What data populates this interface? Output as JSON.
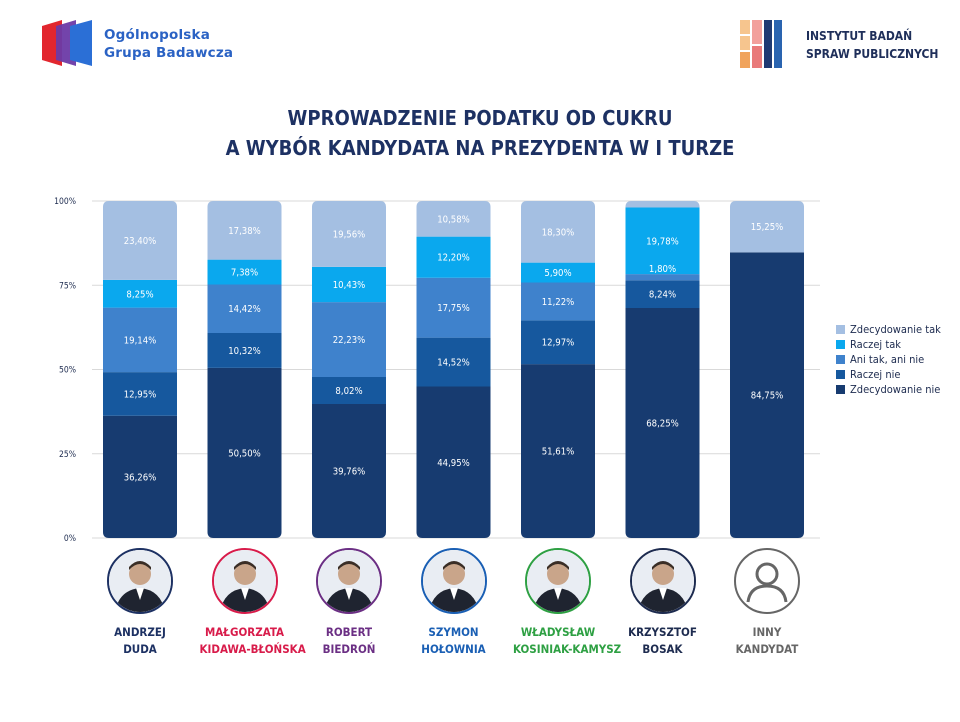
{
  "logos": {
    "left": {
      "line1": "Ogólnopolska",
      "line2": "Grupa Badawcza"
    },
    "right": {
      "line1": "INSTYTUT BADAŃ",
      "line2": "SPRAW PUBLICZNYCH"
    }
  },
  "title": {
    "line1": "WPROWADZENIE PODATKU OD CUKRU",
    "line2": "A WYBÓR KANDYDATA NA PREZYDENTA W I TURZE"
  },
  "colors": {
    "zdecydowanie_tak": "#a4bfe2",
    "raczej_tak": "#0aa8ee",
    "ani_tak_ani_nie": "#3f82cc",
    "raczej_nie": "#16589e",
    "zdecydowanie_nie": "#173b70",
    "title": "#1d3163"
  },
  "chart_data": {
    "type": "bar",
    "stacked": true,
    "orientation": "vertical",
    "categories": [
      "ANDRZEJ DUDA",
      "MAŁGORZATA KIDAWA-BŁOŃSKA",
      "ROBERT BIEDROŃ",
      "SZYMON HOŁOWNIA",
      "WŁADYSŁAW KOSINIAK-KAMYSZ",
      "KRZYSZTOF BOSAK",
      "INNY KANDYDAT"
    ],
    "y_ticks": [
      "0%",
      "25%",
      "50%",
      "75%",
      "100%"
    ],
    "ylim": [
      0,
      100
    ],
    "grid": true,
    "legend_position": "right",
    "series": [
      {
        "name": "Zdecydowanie nie",
        "values": [
          36.26,
          50.5,
          39.76,
          44.95,
          51.61,
          68.25,
          84.75
        ],
        "labels": [
          "36,26%",
          "50,50%",
          "39,76%",
          "44,95%",
          "51,61%",
          "68,25%",
          "84,75%"
        ]
      },
      {
        "name": "Raczej nie",
        "values": [
          12.95,
          10.32,
          8.02,
          14.52,
          12.97,
          8.24,
          0
        ],
        "labels": [
          "12,95%",
          "10,32%",
          "8,02%",
          "14,52%",
          "12,97%",
          "8,24%",
          ""
        ]
      },
      {
        "name": "Ani tak, ani nie",
        "values": [
          19.14,
          14.42,
          22.23,
          17.75,
          11.22,
          1.8,
          0
        ],
        "labels": [
          "19,14%",
          "14,42%",
          "22,23%",
          "17,75%",
          "11,22%",
          "",
          ""
        ]
      },
      {
        "name": "Raczej tak",
        "values": [
          8.25,
          7.38,
          10.43,
          12.2,
          5.9,
          19.78,
          0
        ],
        "labels": [
          "8,25%",
          "7,38%",
          "10,43%",
          "12,20%",
          "5,90%",
          "19,78%",
          ""
        ]
      },
      {
        "name": "Zdecydowanie tak",
        "values": [
          23.4,
          17.38,
          19.56,
          10.58,
          18.3,
          1.93,
          15.25
        ],
        "labels": [
          "23,40%",
          "17,38%",
          "19,56%",
          "10,58%",
          "18,30%",
          "",
          "15,25%"
        ]
      }
    ],
    "extra_labels": [
      {
        "category_index": 5,
        "series_index": 2,
        "text": "1,80%"
      }
    ]
  },
  "legend": [
    "Zdecydowanie tak",
    "Raczej tak",
    "Ani tak, ani nie",
    "Raczej nie",
    "Zdecydowanie nie"
  ],
  "candidates": [
    {
      "line1": "ANDRZEJ",
      "line2": "DUDA",
      "color": "#1d3163"
    },
    {
      "line1": "MAŁGORZATA",
      "line2": "KIDAWA-BŁOŃSKA",
      "color": "#d81b4a"
    },
    {
      "line1": "ROBERT",
      "line2": "BIEDROŃ",
      "color": "#6b2f84"
    },
    {
      "line1": "SZYMON",
      "line2": "HOŁOWNIA",
      "color": "#1a5fb4"
    },
    {
      "line1": "WŁADYSŁAW",
      "line2": "KOSINIAK-KAMYSZ",
      "color": "#2ea043"
    },
    {
      "line1": "KRZYSZTOF",
      "line2": "BOSAK",
      "color": "#1d2b4f"
    },
    {
      "line1": "INNY",
      "line2": "KANDYDAT",
      "color": "#666666"
    }
  ]
}
